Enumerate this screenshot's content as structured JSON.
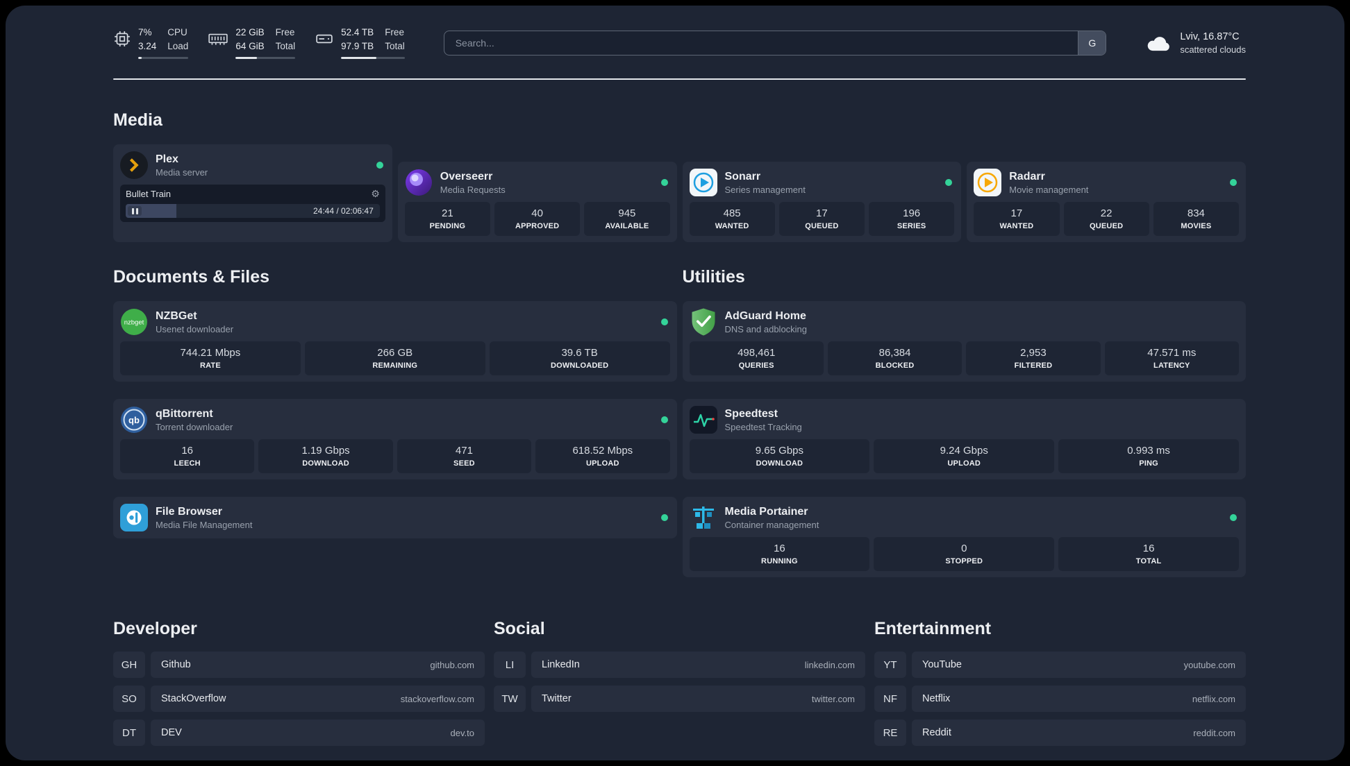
{
  "topbar": {
    "cpu": {
      "values": [
        "7%",
        "3.24"
      ],
      "labels": [
        "CPU",
        "Load"
      ],
      "bar_pct": 7
    },
    "ram": {
      "values": [
        "22 GiB",
        "64 GiB"
      ],
      "labels": [
        "Free",
        "Total"
      ],
      "bar_pct": 36
    },
    "disk": {
      "values": [
        "52.4 TB",
        "97.9 TB"
      ],
      "labels": [
        "Free",
        "Total"
      ],
      "bar_pct": 55
    },
    "search": {
      "placeholder": "Search...",
      "button_label": "G"
    },
    "weather": {
      "location": "Lviv, 16.87°C",
      "condition": "scattered clouds"
    }
  },
  "sections": {
    "media": {
      "title": "Media",
      "plex": {
        "name": "Plex",
        "subtitle": "Media server",
        "now_playing": {
          "title": "Bullet Train",
          "time": "24:44 / 02:06:47",
          "progress_pct": 20
        }
      },
      "overseerr": {
        "name": "Overseerr",
        "subtitle": "Media Requests",
        "stats": [
          {
            "value": "21",
            "label": "PENDING"
          },
          {
            "value": "40",
            "label": "APPROVED"
          },
          {
            "value": "945",
            "label": "AVAILABLE"
          }
        ]
      },
      "sonarr": {
        "name": "Sonarr",
        "subtitle": "Series management",
        "stats": [
          {
            "value": "485",
            "label": "WANTED"
          },
          {
            "value": "17",
            "label": "QUEUED"
          },
          {
            "value": "196",
            "label": "SERIES"
          }
        ]
      },
      "radarr": {
        "name": "Radarr",
        "subtitle": "Movie management",
        "stats": [
          {
            "value": "17",
            "label": "WANTED"
          },
          {
            "value": "22",
            "label": "QUEUED"
          },
          {
            "value": "834",
            "label": "MOVIES"
          }
        ]
      }
    },
    "documents": {
      "title": "Documents & Files",
      "nzbget": {
        "name": "NZBGet",
        "subtitle": "Usenet downloader",
        "stats": [
          {
            "value": "744.21 Mbps",
            "label": "RATE"
          },
          {
            "value": "266 GB",
            "label": "REMAINING"
          },
          {
            "value": "39.6 TB",
            "label": "DOWNLOADED"
          }
        ]
      },
      "qbittorrent": {
        "name": "qBittorrent",
        "subtitle": "Torrent downloader",
        "stats": [
          {
            "value": "16",
            "label": "LEECH"
          },
          {
            "value": "1.19 Gbps",
            "label": "DOWNLOAD"
          },
          {
            "value": "471",
            "label": "SEED"
          },
          {
            "value": "618.52 Mbps",
            "label": "UPLOAD"
          }
        ]
      },
      "filebrowser": {
        "name": "File Browser",
        "subtitle": "Media File Management"
      }
    },
    "utilities": {
      "title": "Utilities",
      "adguard": {
        "name": "AdGuard Home",
        "subtitle": "DNS and adblocking",
        "stats": [
          {
            "value": "498,461",
            "label": "QUERIES"
          },
          {
            "value": "86,384",
            "label": "BLOCKED"
          },
          {
            "value": "2,953",
            "label": "FILTERED"
          },
          {
            "value": "47.571 ms",
            "label": "LATENCY"
          }
        ]
      },
      "speedtest": {
        "name": "Speedtest",
        "subtitle": "Speedtest Tracking",
        "stats": [
          {
            "value": "9.65 Gbps",
            "label": "DOWNLOAD"
          },
          {
            "value": "9.24 Gbps",
            "label": "UPLOAD"
          },
          {
            "value": "0.993 ms",
            "label": "PING"
          }
        ]
      },
      "portainer": {
        "name": "Media Portainer",
        "subtitle": "Container management",
        "stats": [
          {
            "value": "16",
            "label": "RUNNING"
          },
          {
            "value": "0",
            "label": "STOPPED"
          },
          {
            "value": "16",
            "label": "TOTAL"
          }
        ]
      }
    },
    "bookmarks": {
      "developer": {
        "title": "Developer",
        "items": [
          {
            "abbr": "GH",
            "name": "Github",
            "domain": "github.com"
          },
          {
            "abbr": "SO",
            "name": "StackOverflow",
            "domain": "stackoverflow.com"
          },
          {
            "abbr": "DT",
            "name": "DEV",
            "domain": "dev.to"
          }
        ]
      },
      "social": {
        "title": "Social",
        "items": [
          {
            "abbr": "LI",
            "name": "LinkedIn",
            "domain": "linkedin.com"
          },
          {
            "abbr": "TW",
            "name": "Twitter",
            "domain": "twitter.com"
          }
        ]
      },
      "entertainment": {
        "title": "Entertainment",
        "items": [
          {
            "abbr": "YT",
            "name": "YouTube",
            "domain": "youtube.com"
          },
          {
            "abbr": "NF",
            "name": "Netflix",
            "domain": "netflix.com"
          },
          {
            "abbr": "RE",
            "name": "Reddit",
            "domain": "reddit.com"
          }
        ]
      }
    }
  },
  "colors": {
    "background": "#1e2534",
    "card": "#272e3e",
    "tile": "#1e2534",
    "status_online": "#34d399",
    "plex_accent": "#e5a00d",
    "adguard_green": "#4caf50",
    "portainer_blue": "#2db9e8"
  }
}
